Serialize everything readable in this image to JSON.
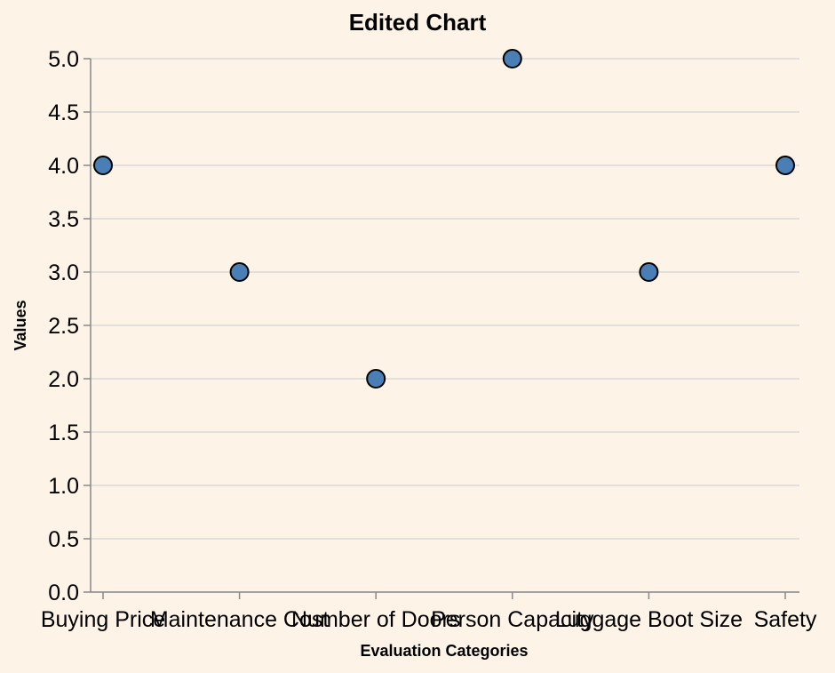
{
  "chart_data": {
    "type": "scatter",
    "title": "Edited Chart",
    "xlabel": "Evaluation Categories",
    "ylabel": "Values",
    "categories": [
      "Buying Price",
      "Maintenance Cost",
      "Number of Doors",
      "Person Capacity",
      "Luggage Boot Size",
      "Safety"
    ],
    "values": [
      4,
      3,
      2,
      5,
      3,
      4
    ],
    "ylim": [
      0,
      5
    ],
    "yticks": [
      "0.0",
      "0.5",
      "1.0",
      "1.5",
      "2.0",
      "2.5",
      "3.0",
      "3.5",
      "4.0",
      "4.5",
      "5.0"
    ],
    "grid": true,
    "colors": {
      "background": "#fdf3e6",
      "point_fill": "#4a7fb5",
      "point_stroke": "#000000",
      "grid": "#d9d9d9",
      "axis": "#888888"
    }
  }
}
